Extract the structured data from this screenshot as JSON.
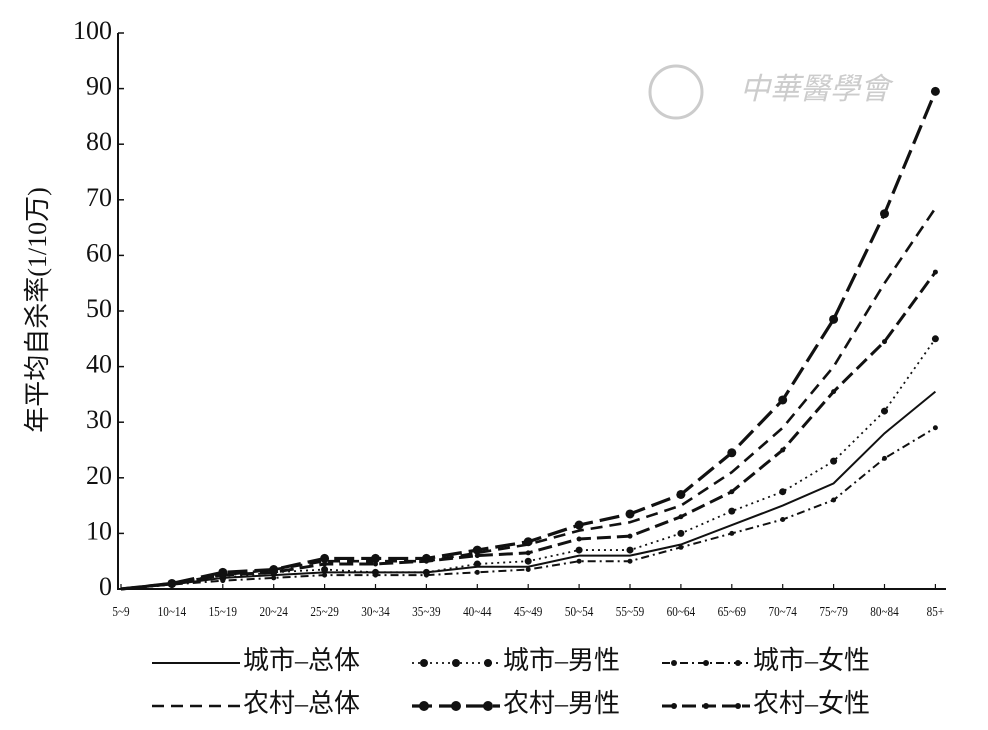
{
  "chart_data": {
    "type": "line",
    "y_label": "年平均自杀率(1/10万)",
    "watermark": "中華醫學會",
    "categories": [
      "5~9",
      "10~14",
      "15~19",
      "20~24",
      "25~29",
      "30~34",
      "35~39",
      "40~44",
      "45~49",
      "50~54",
      "55~59",
      "60~64",
      "65~69",
      "70~74",
      "75~79",
      "80~84",
      "85+"
    ],
    "series": [
      {
        "name": "城市–总体",
        "color": "#111111",
        "values": [
          0,
          0.8,
          2,
          2.5,
          3,
          3,
          3,
          4,
          4,
          6,
          6,
          8,
          11.5,
          15,
          19,
          28,
          35.5
        ]
      },
      {
        "name": "城市–男性",
        "color": "#111111",
        "values": [
          0,
          0.8,
          2,
          3,
          3.5,
          3,
          3,
          4.5,
          5,
          7,
          7,
          10,
          14,
          17.5,
          23,
          32,
          45
        ]
      },
      {
        "name": "城市–女性",
        "color": "#111111",
        "values": [
          0,
          0.8,
          1.5,
          2,
          2.5,
          2.5,
          2.5,
          3,
          3.5,
          5,
          5,
          7.5,
          10,
          12.5,
          16,
          23.5,
          29
        ]
      },
      {
        "name": "农村–总体",
        "color": "#111111",
        "values": [
          0,
          1,
          2.5,
          3.5,
          5,
          5,
          5,
          6.5,
          8,
          10.5,
          12,
          15,
          21,
          29,
          40,
          55,
          68.5
        ]
      },
      {
        "name": "农村–男性",
        "color": "#111111",
        "values": [
          0,
          1,
          3,
          3.5,
          5.5,
          5.5,
          5.5,
          7,
          8.5,
          11.5,
          13.5,
          17,
          24.5,
          34,
          48.5,
          67.5,
          89.5
        ]
      },
      {
        "name": "农村–女性",
        "color": "#111111",
        "values": [
          0,
          1,
          2.5,
          3,
          4.5,
          4.5,
          5,
          6,
          6.5,
          9,
          9.5,
          13,
          17.5,
          25,
          35.5,
          44.5,
          57
        ]
      }
    ],
    "ylim": [
      0,
      100
    ],
    "yticks": [
      0,
      10,
      20,
      30,
      40,
      50,
      60,
      70,
      80,
      90,
      100
    ]
  }
}
